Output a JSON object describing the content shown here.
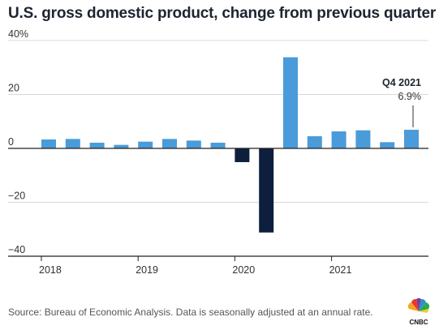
{
  "chart_data": {
    "type": "bar",
    "title": "U.S. gross domestic product, change from previous quarter",
    "xlabel": "",
    "ylabel": "",
    "ylim": [
      -40,
      40
    ],
    "yticks": [
      {
        "value": 40,
        "label": "40%"
      },
      {
        "value": 20,
        "label": "20"
      },
      {
        "value": 0,
        "label": "0"
      },
      {
        "value": -20,
        "label": "−20"
      },
      {
        "value": -40,
        "label": "−40"
      }
    ],
    "categories": [
      "Q1 2018",
      "Q2 2018",
      "Q3 2018",
      "Q4 2018",
      "Q1 2019",
      "Q2 2019",
      "Q3 2019",
      "Q4 2019",
      "Q1 2020",
      "Q2 2020",
      "Q3 2020",
      "Q4 2020",
      "Q1 2021",
      "Q2 2021",
      "Q3 2021",
      "Q4 2021"
    ],
    "values": [
      3.3,
      3.5,
      2.1,
      1.3,
      2.5,
      3.5,
      2.9,
      2.1,
      -5.1,
      -31.2,
      33.8,
      4.5,
      6.3,
      6.7,
      2.3,
      6.9
    ],
    "x_year_labels": [
      {
        "label": "2018",
        "index": 0
      },
      {
        "label": "2019",
        "index": 4
      },
      {
        "label": "2020",
        "index": 8
      },
      {
        "label": "2021",
        "index": 12
      }
    ],
    "colors": {
      "positive": "#4a9bd9",
      "negative": "#0d1f3c",
      "axis": "#222222",
      "grid": "#d9d9d9"
    },
    "grid": true,
    "annotation": {
      "index": 15,
      "label": "Q4 2021",
      "value_label": "6.9%"
    },
    "source": "Source: Bureau of Economic Analysis. Data is seasonally adjusted at an annual rate.",
    "logo": "CNBC"
  }
}
